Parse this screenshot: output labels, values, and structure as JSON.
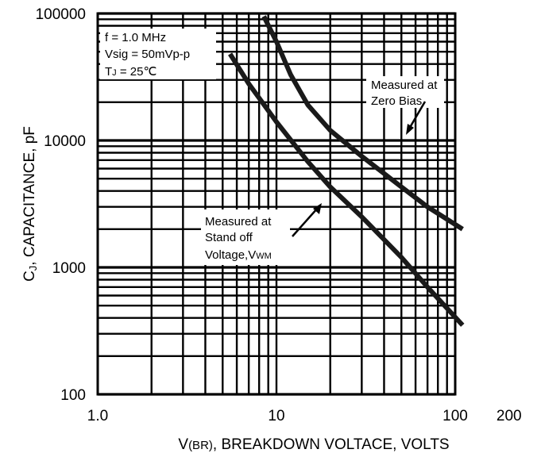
{
  "chart_data": {
    "type": "line",
    "x_scale": "log",
    "y_scale": "log",
    "xlim": [
      1,
      200
    ],
    "ylim": [
      100,
      100000
    ],
    "grid": true,
    "legend": "none",
    "x_tick_labels": [
      "1.0",
      "10",
      "100",
      "200"
    ],
    "x_tick_values": [
      1,
      10,
      100,
      200
    ],
    "y_tick_labels": [
      "100000",
      "10000",
      "1000",
      "100"
    ],
    "y_tick_values": [
      100000,
      10000,
      1000,
      100
    ],
    "xlabel": {
      "prefix": "V",
      "sub": "(BR)",
      "rest": ", BREAKDOWN VOLTACE, VOLTS"
    },
    "ylabel": {
      "prefix": "C",
      "sub": "J",
      "rest": ", CAPACITANCE, pF"
    },
    "conditions": {
      "line1": "f = 1.0 MHz",
      "line2": "Vsig = 50mVp-p",
      "line3_prefix": "T",
      "line3_sub": "J",
      "line3_rest": " = 25℃"
    },
    "annotations": {
      "zero_bias_1": "Measured at",
      "zero_bias_2": "Zero Bias",
      "standoff_1": "Measured at",
      "standoff_2": "Stand off",
      "standoff_3_prefix": "Voltage,V",
      "standoff_3_sub": "WM"
    },
    "series": [
      {
        "x": [
          8.5,
          10,
          12,
          15,
          20,
          30,
          50,
          70,
          110
        ],
        "y": [
          95000,
          60000,
          33000,
          19000,
          12000,
          7500,
          4300,
          3000,
          2000
        ]
      },
      {
        "x": [
          5.5,
          7,
          10,
          15,
          20,
          30,
          50,
          70,
          110
        ],
        "y": [
          48000,
          28000,
          14000,
          6800,
          4300,
          2500,
          1200,
          700,
          350
        ]
      }
    ]
  }
}
